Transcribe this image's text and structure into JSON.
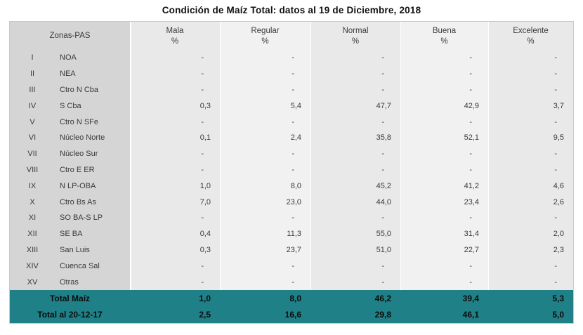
{
  "chart_data": {
    "type": "table",
    "title": "Condición de Maíz Total: datos al 19 de Diciembre, 2018",
    "row_header": "Zonas-PAS",
    "column_unit": "%",
    "columns": [
      "Mala",
      "Regular",
      "Normal",
      "Buena",
      "Excelente"
    ],
    "rows": [
      {
        "numeral": "I",
        "zone": "NOA",
        "values": [
          "-",
          "-",
          "-",
          "-",
          "-"
        ]
      },
      {
        "numeral": "II",
        "zone": "NEA",
        "values": [
          "-",
          "-",
          "-",
          "-",
          "-"
        ]
      },
      {
        "numeral": "III",
        "zone": "Ctro N Cba",
        "values": [
          "-",
          "-",
          "-",
          "-",
          "-"
        ]
      },
      {
        "numeral": "IV",
        "zone": "S Cba",
        "values": [
          "0,3",
          "5,4",
          "47,7",
          "42,9",
          "3,7"
        ]
      },
      {
        "numeral": "V",
        "zone": "Ctro N SFe",
        "values": [
          "-",
          "-",
          "-",
          "-",
          "-"
        ]
      },
      {
        "numeral": "VI",
        "zone": "Núcleo Norte",
        "values": [
          "0,1",
          "2,4",
          "35,8",
          "52,1",
          "9,5"
        ]
      },
      {
        "numeral": "VII",
        "zone": "Núcleo Sur",
        "values": [
          "-",
          "-",
          "-",
          "-",
          "-"
        ]
      },
      {
        "numeral": "VIII",
        "zone": "Ctro E ER",
        "values": [
          "-",
          "-",
          "-",
          "-",
          "-"
        ]
      },
      {
        "numeral": "IX",
        "zone": "N LP-OBA",
        "values": [
          "1,0",
          "8,0",
          "45,2",
          "41,2",
          "4,6"
        ]
      },
      {
        "numeral": "X",
        "zone": "Ctro Bs As",
        "values": [
          "7,0",
          "23,0",
          "44,0",
          "23,4",
          "2,6"
        ]
      },
      {
        "numeral": "XI",
        "zone": "SO BA-S LP",
        "values": [
          "-",
          "-",
          "-",
          "-",
          "-"
        ]
      },
      {
        "numeral": "XII",
        "zone": "SE BA",
        "values": [
          "0,4",
          "11,3",
          "55,0",
          "31,4",
          "2,0"
        ]
      },
      {
        "numeral": "XIII",
        "zone": "San Luis",
        "values": [
          "0,3",
          "23,7",
          "51,0",
          "22,7",
          "2,3"
        ]
      },
      {
        "numeral": "XIV",
        "zone": "Cuenca Sal",
        "values": [
          "-",
          "-",
          "-",
          "-",
          "-"
        ]
      },
      {
        "numeral": "XV",
        "zone": "Otras",
        "values": [
          "-",
          "-",
          "-",
          "-",
          "-"
        ]
      }
    ],
    "totals": [
      {
        "label": "Total Maíz",
        "values": [
          "1,0",
          "8,0",
          "46,2",
          "39,4",
          "5,3"
        ]
      },
      {
        "label": "Total al 20-12-17",
        "values": [
          "2,5",
          "16,6",
          "29,8",
          "46,1",
          "5,0"
        ]
      }
    ]
  },
  "colors": {
    "teal": "#1f8087",
    "zone_column_bg": "#d5d5d5",
    "dark_stripe_bg": "#e9e9e9",
    "light_stripe_bg": "#f1f1f1",
    "title_text": "#111111",
    "body_text": "#3a3a3a",
    "total_text": "#0b0b0b"
  }
}
